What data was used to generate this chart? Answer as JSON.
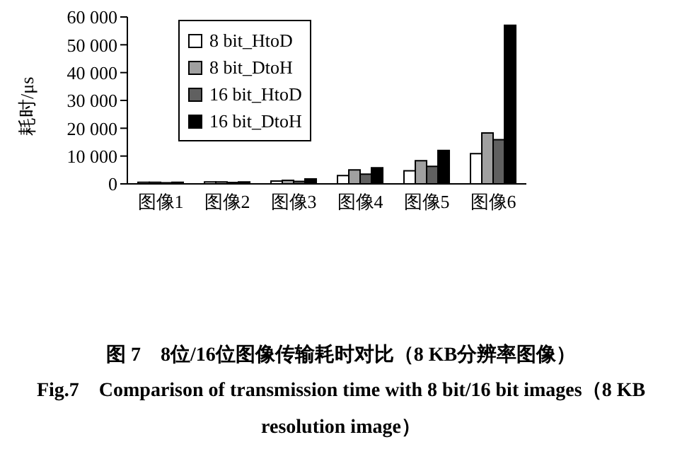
{
  "chart_data": {
    "type": "bar",
    "title": "图 7　8位/16位图像传输耗时对比（8 KB分辨率图像）",
    "subtitle": "Fig.7　Comparison of transmission time with 8 bit/16 bit images（8 KB resolution image）",
    "ylabel": "耗时/μs",
    "categories": [
      "图像1",
      "图像2",
      "图像3",
      "图像4",
      "图像5",
      "图像6"
    ],
    "series": [
      {
        "name": "8 bit_HtoD",
        "color": "#ffffff",
        "values": [
          600,
          700,
          1000,
          3000,
          4700,
          10900
        ]
      },
      {
        "name": "8 bit_DtoH",
        "color": "#a0a0a0",
        "values": [
          600,
          700,
          1300,
          5000,
          8300,
          18300
        ]
      },
      {
        "name": "16 bit_HtoD",
        "color": "#606060",
        "values": [
          400,
          500,
          900,
          3500,
          6300,
          15900
        ]
      },
      {
        "name": "16 bit_DtoH",
        "color": "#000000",
        "values": [
          600,
          700,
          1800,
          5800,
          12000,
          57000
        ]
      }
    ],
    "ylim": [
      0,
      60000
    ],
    "yticks": [
      0,
      {
        "value": 10000,
        "label": "10 000"
      },
      {
        "value": 20000,
        "label": "20 000"
      },
      {
        "value": 30000,
        "label": "30 000"
      },
      {
        "value": 40000,
        "label": "40 000"
      },
      {
        "value": 50000,
        "label": "50 000"
      },
      {
        "value": 60000,
        "label": "60 000"
      }
    ],
    "grid": false,
    "legend": "top left"
  }
}
